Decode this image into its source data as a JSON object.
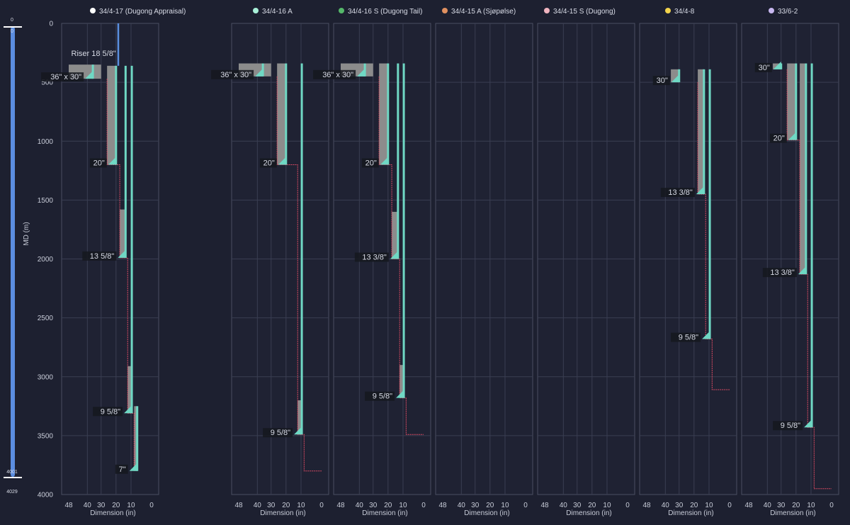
{
  "chart_data": {
    "type": "well-casing-schematic",
    "ylabel": "MD (m)",
    "xlabel": "Dimension (in)",
    "y_ticks": [
      0,
      500,
      1000,
      1500,
      2000,
      2500,
      3000,
      3500,
      4000
    ],
    "x_ticks": [
      48,
      40,
      30,
      20,
      10,
      0
    ],
    "ylim": [
      0,
      4000
    ],
    "xlim": [
      48,
      0
    ],
    "depth_slider": {
      "top_value": "0",
      "top_value_second": "0",
      "bottom_value": "4001",
      "bottom_value_second": "4029"
    },
    "colors": {
      "background": "#1d2030",
      "casing": "#6fd8c4",
      "cement": "#8c8c8c",
      "openhole": "#d94a63",
      "riser": "#5a8fe0",
      "slider": "#5b8de0",
      "grid": "#3a3e52"
    },
    "wells": [
      {
        "name": "34/4-17 (Dugong Appraisal)",
        "color": "#ffffff",
        "riser": {
          "label": "Riser 18 5/8\"",
          "diameter": 18.625,
          "top": 0,
          "bottom": 360
        },
        "casings": [
          {
            "label": "36\" x 30\"",
            "od": 36,
            "top": 350,
            "shoe": 470
          },
          {
            "label": "20\"",
            "od": 20,
            "top": 360,
            "shoe": 1200
          },
          {
            "label": "13 5/8\"",
            "od": 13.625,
            "top": 360,
            "shoe": 1990
          },
          {
            "label": "9 5/8\"",
            "od": 9.625,
            "top": 360,
            "shoe": 3310
          },
          {
            "label": "7\"",
            "od": 7,
            "top": 3250,
            "shoe": 3800
          }
        ],
        "cement": [
          {
            "top": 350,
            "bottom": 470,
            "outer": 48,
            "inner": 30
          },
          {
            "top": 360,
            "bottom": 1200,
            "outer": 26,
            "inner": 20
          },
          {
            "top": 1580,
            "bottom": 1990,
            "outer": 17.5,
            "inner": 13.625
          },
          {
            "top": 2910,
            "bottom": 3310,
            "outer": 12.25,
            "inner": 9.625
          },
          {
            "top": 3250,
            "bottom": 3800,
            "outer": 8.5,
            "inner": 7
          }
        ],
        "openhole": [
          [
            26,
            470
          ],
          [
            26,
            1200
          ],
          [
            17.5,
            1200
          ],
          [
            17.5,
            1990
          ],
          [
            12.25,
            1990
          ],
          [
            12.25,
            3310
          ],
          [
            8.5,
            3310
          ],
          [
            8.5,
            3800
          ]
        ]
      },
      {
        "name": "34/4-16 A",
        "color": "#a8f0d8",
        "casings": [
          {
            "label": "36\" x 30\"",
            "od": 36,
            "top": 340,
            "shoe": 450
          },
          {
            "label": "20\"",
            "od": 20,
            "top": 340,
            "shoe": 1200
          },
          {
            "label": "9 5/8\"",
            "od": 9.625,
            "top": 340,
            "shoe": 3490
          }
        ],
        "cement": [
          {
            "top": 340,
            "bottom": 450,
            "outer": 48,
            "inner": 30
          },
          {
            "top": 340,
            "bottom": 1200,
            "outer": 26,
            "inner": 20
          },
          {
            "top": 3200,
            "bottom": 3490,
            "outer": 12.25,
            "inner": 9.625
          }
        ],
        "openhole": [
          [
            26,
            450
          ],
          [
            26,
            1200
          ],
          [
            12.25,
            1200
          ],
          [
            12.25,
            3490
          ],
          [
            8.5,
            3490
          ],
          [
            8.5,
            3800
          ],
          [
            0,
            3800
          ]
        ]
      },
      {
        "name": "34/4-16 S (Dugong Tail)",
        "color": "#55b86a",
        "casings": [
          {
            "label": "36\" x 30\"",
            "od": 36,
            "top": 340,
            "shoe": 450
          },
          {
            "label": "20\"",
            "od": 20,
            "top": 340,
            "shoe": 1200
          },
          {
            "label": "13 3/8\"",
            "od": 13.375,
            "top": 340,
            "shoe": 2000
          },
          {
            "label": "9 5/8\"",
            "od": 9.625,
            "top": 340,
            "shoe": 3180
          }
        ],
        "cement": [
          {
            "top": 340,
            "bottom": 450,
            "outer": 48,
            "inner": 30
          },
          {
            "top": 340,
            "bottom": 1200,
            "outer": 26,
            "inner": 20
          },
          {
            "top": 1600,
            "bottom": 2000,
            "outer": 17.5,
            "inner": 13.375
          },
          {
            "top": 2900,
            "bottom": 3180,
            "outer": 12.25,
            "inner": 9.625
          }
        ],
        "openhole": [
          [
            26,
            450
          ],
          [
            26,
            1200
          ],
          [
            17.5,
            1200
          ],
          [
            17.5,
            2000
          ],
          [
            12.25,
            2000
          ],
          [
            12.25,
            3180
          ],
          [
            8.5,
            3180
          ],
          [
            8.5,
            3490
          ],
          [
            0,
            3490
          ]
        ]
      },
      {
        "name": "34/4-15 A (Sjøpølse)",
        "color": "#e09060",
        "casings": [],
        "cement": [],
        "openhole": []
      },
      {
        "name": "34/4-15 S (Dugong)",
        "color": "#f0b4bf",
        "casings": [],
        "cement": [],
        "openhole": []
      },
      {
        "name": "34/4-8",
        "color": "#f2d34c",
        "casings": [
          {
            "label": "30\"",
            "od": 30,
            "top": 390,
            "shoe": 500
          },
          {
            "label": "13 3/8\"",
            "od": 13.375,
            "top": 390,
            "shoe": 1450
          },
          {
            "label": "9 5/8\"",
            "od": 9.625,
            "top": 390,
            "shoe": 2680
          }
        ],
        "cement": [
          {
            "top": 390,
            "bottom": 500,
            "outer": 36,
            "inner": 30
          },
          {
            "top": 390,
            "bottom": 1450,
            "outer": 17.5,
            "inner": 13.375
          }
        ],
        "openhole": [
          [
            17.5,
            500
          ],
          [
            17.5,
            1450
          ],
          [
            12.25,
            1450
          ],
          [
            12.25,
            2680
          ],
          [
            8.5,
            2680
          ],
          [
            8.5,
            3110
          ],
          [
            0,
            3110
          ]
        ]
      },
      {
        "name": "33/6-2",
        "color": "#c8b8f0",
        "casings": [
          {
            "label": "30\"",
            "od": 30,
            "top": 340,
            "shoe": 390
          },
          {
            "label": "20\"",
            "od": 20,
            "top": 340,
            "shoe": 990
          },
          {
            "label": "13 3/8\"",
            "od": 13.375,
            "top": 340,
            "shoe": 2130
          },
          {
            "label": "9 5/8\"",
            "od": 9.625,
            "top": 340,
            "shoe": 3430
          }
        ],
        "cement": [
          {
            "top": 340,
            "bottom": 390,
            "outer": 36,
            "inner": 30
          },
          {
            "top": 340,
            "bottom": 990,
            "outer": 26,
            "inner": 20
          },
          {
            "top": 340,
            "bottom": 2130,
            "outer": 17.5,
            "inner": 13.375
          }
        ],
        "openhole": [
          [
            26,
            390
          ],
          [
            26,
            990
          ],
          [
            17.5,
            990
          ],
          [
            17.5,
            2130
          ],
          [
            12.25,
            2130
          ],
          [
            12.25,
            3430
          ],
          [
            8.5,
            3430
          ],
          [
            8.5,
            3950
          ],
          [
            0,
            3950
          ]
        ]
      }
    ]
  }
}
